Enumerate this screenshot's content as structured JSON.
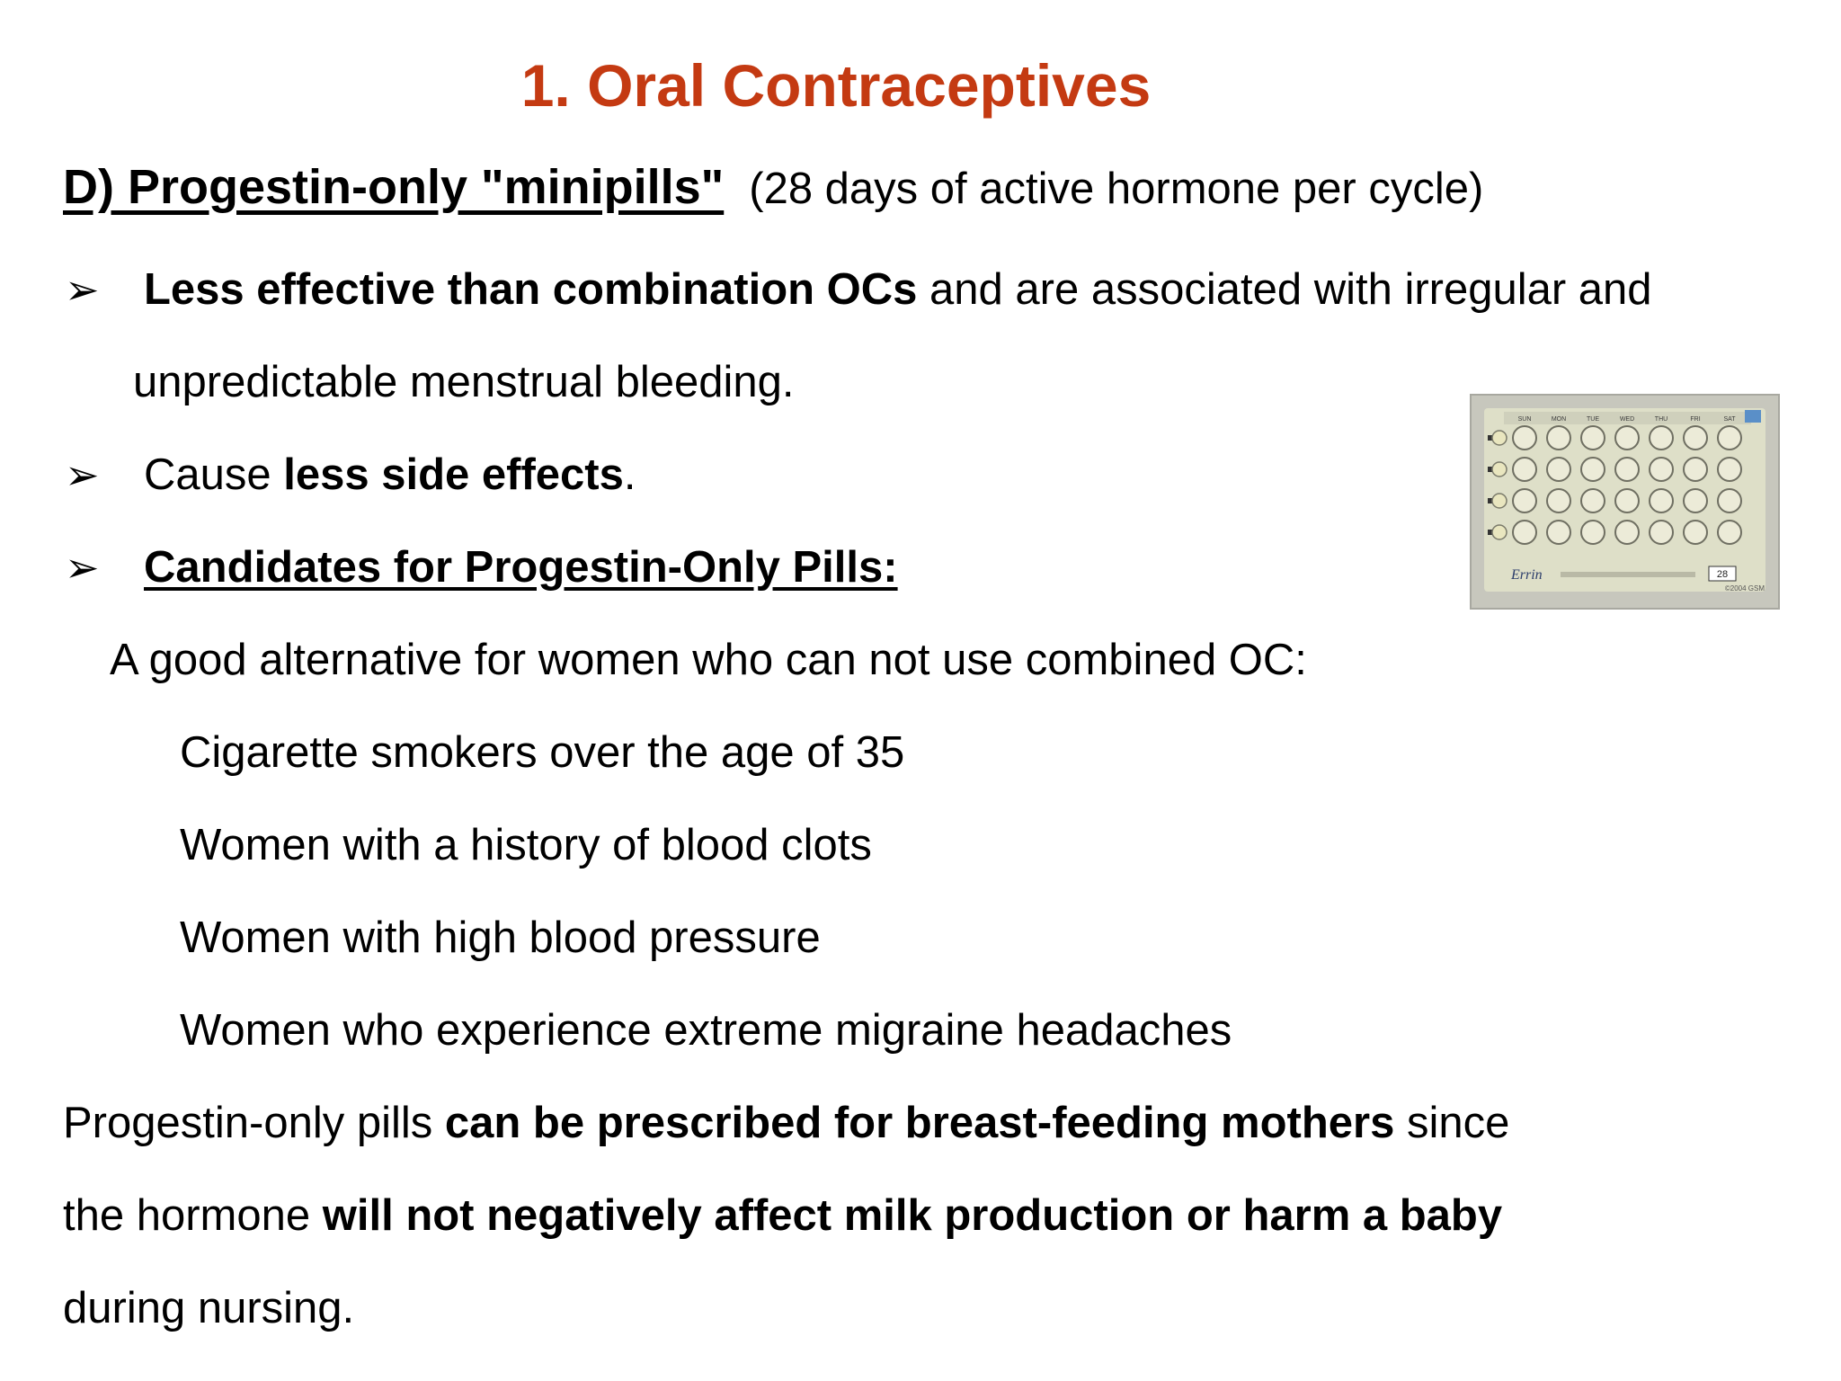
{
  "title": "1. Oral Contraceptives",
  "colors": {
    "title": "#c43a12",
    "text": "#000000",
    "background": "#ffffff"
  },
  "subtitle": {
    "main": "D) Progestin-only \"minipills\"",
    "note": "(28 days of active hormone per cycle)"
  },
  "bullet_icon": "arrowhead-bullet-icon",
  "bullets": [
    {
      "bold": "Less effective than combination OCs",
      "rest": " and are associated with irregular and",
      "continuation": "unpredictable menstrual bleeding."
    },
    {
      "pre": "Cause ",
      "bold": "less side effects",
      "post": "."
    },
    {
      "heading": "Candidates for Progestin-Only Pills:"
    }
  ],
  "alternative_intro": "A good alternative for women who can not use combined OC:",
  "candidates": [
    "Cigarette smokers over the age of 35",
    "Women with a history of blood clots",
    "Women with high blood pressure",
    "Women who experience extreme migraine headaches"
  ],
  "closing": {
    "line1_pre": "Progestin-only pills ",
    "line1_bold": "can be prescribed for breast-feeding mothers",
    "line1_post": " since",
    "line2_pre": "the hormone ",
    "line2_bold": "will not negatively affect milk production or harm a baby",
    "line3": "during nursing."
  },
  "image": {
    "icon": "pill-blister-pack-image",
    "days": [
      "SUN",
      "MON",
      "TUE",
      "WED",
      "THU",
      "FRI",
      "SAT"
    ],
    "brand": "Errin",
    "count_label": "28",
    "copyright": "©2004 GSM"
  }
}
